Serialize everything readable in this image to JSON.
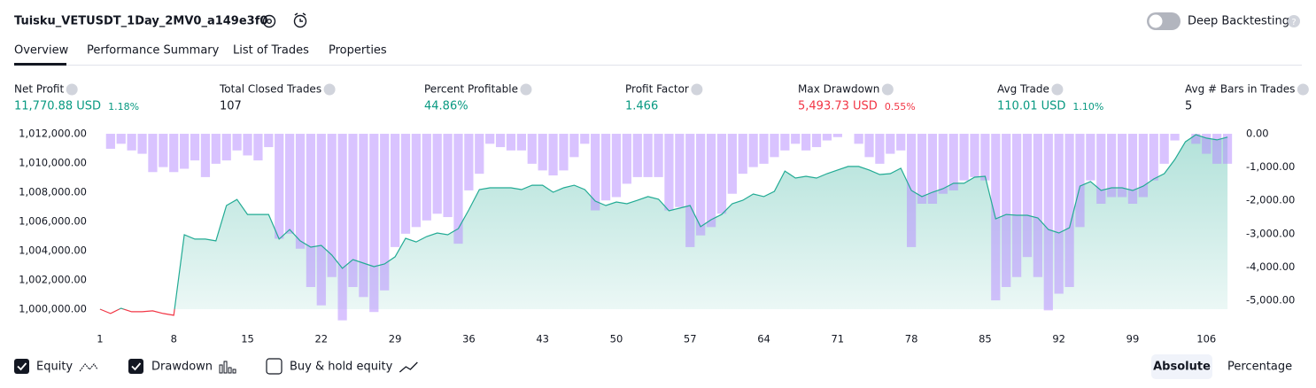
{
  "header": {
    "title": "Tuisku_VETUSDT_1Day_2MV0_a149e3f0",
    "deep_backtesting": "Deep Backtesting"
  },
  "tabs": [
    "Overview",
    "Performance Summary",
    "List of Trades",
    "Properties"
  ],
  "stats": [
    {
      "label": "Net Profit",
      "value": "11,770.88 USD",
      "percent": "1.18%"
    },
    {
      "label": "Total Closed Trades",
      "value": "107"
    },
    {
      "label": "Percent Profitable",
      "value": "44.86%"
    },
    {
      "label": "Profit Factor",
      "value": "1.466"
    },
    {
      "label": "Max Drawdown",
      "value": "5,493.73 USD",
      "percent": "0.55%"
    },
    {
      "label": "Avg Trade",
      "value": "110.01 USD",
      "percent": "1.10%"
    },
    {
      "label": "Avg # Bars in Trades",
      "value": "5"
    }
  ],
  "controls": {
    "buy_hold": "Buy & hold equity",
    "scale_buttons": [
      "Absolute",
      "Percentage"
    ]
  },
  "chart_data": {
    "type": "combo",
    "x": [
      1,
      2,
      3,
      4,
      5,
      6,
      7,
      8,
      9,
      10,
      11,
      12,
      13,
      14,
      15,
      16,
      17,
      18,
      19,
      20,
      21,
      22,
      23,
      24,
      25,
      26,
      27,
      28,
      29,
      30,
      31,
      32,
      33,
      34,
      35,
      36,
      37,
      38,
      39,
      40,
      41,
      42,
      43,
      44,
      45,
      46,
      47,
      48,
      49,
      50,
      51,
      52,
      53,
      54,
      55,
      56,
      57,
      58,
      59,
      60,
      61,
      62,
      63,
      64,
      65,
      66,
      67,
      68,
      69,
      70,
      71,
      72,
      73,
      74,
      75,
      76,
      77,
      78,
      79,
      80,
      81,
      82,
      83,
      84,
      85,
      86,
      87,
      88,
      89,
      90,
      91,
      92,
      93,
      94,
      95,
      96,
      97,
      98,
      99,
      100,
      101,
      102,
      103,
      104,
      105,
      106,
      107,
      108
    ],
    "xlim": [
      0.5,
      108.5
    ],
    "xticks": [
      1,
      8,
      15,
      22,
      29,
      36,
      43,
      50,
      57,
      64,
      71,
      78,
      85,
      92,
      99,
      106
    ],
    "ylim": [
      999210,
      1012060
    ],
    "yticks": [
      {
        "value": 1000000,
        "label": "1,000,000.00"
      },
      {
        "value": 1002000,
        "label": "1,002,000.00"
      },
      {
        "value": 1004000,
        "label": "1,004,000.00"
      },
      {
        "value": 1006000,
        "label": "1,006,000.00"
      },
      {
        "value": 1008000,
        "label": "1,008,000.00"
      },
      {
        "value": 1010000,
        "label": "1,010,000.00"
      },
      {
        "value": 1012000,
        "label": "1,012,000.00"
      }
    ],
    "y2lim": [
      -5610,
      27
    ],
    "y2ticks": [
      {
        "value": 0,
        "label": "0.00"
      },
      {
        "value": -1000,
        "label": "-1,000.00"
      },
      {
        "value": -2000,
        "label": "-2,000.00"
      },
      {
        "value": -3000,
        "label": "-3,000.00"
      },
      {
        "value": -4000,
        "label": "-4,000.00"
      },
      {
        "value": -5000,
        "label": "-5,000.00"
      }
    ],
    "series": [
      {
        "name": "Equity",
        "color": "#22ab94",
        "loss_color": "#f23645",
        "values": [
          1000000,
          999700,
          1000060,
          999820,
          999820,
          999880,
          999700,
          999580,
          1005090,
          1004790,
          1004790,
          1004670,
          1007090,
          1007500,
          1006480,
          1006480,
          1006480,
          1004790,
          1005450,
          1004670,
          1004240,
          1004360,
          1003700,
          1002790,
          1003390,
          1003150,
          1002910,
          1003090,
          1003580,
          1004850,
          1004600,
          1004970,
          1005210,
          1005090,
          1005510,
          1006790,
          1008180,
          1008300,
          1008300,
          1008300,
          1008180,
          1008480,
          1008480,
          1008000,
          1008300,
          1008480,
          1008180,
          1007390,
          1007090,
          1007330,
          1007210,
          1007450,
          1007700,
          1007520,
          1006730,
          1006910,
          1007090,
          1005640,
          1006120,
          1006480,
          1007210,
          1007450,
          1007880,
          1007700,
          1008060,
          1009450,
          1008970,
          1009090,
          1008970,
          1009270,
          1009520,
          1009760,
          1009760,
          1009520,
          1009210,
          1009270,
          1009640,
          1008120,
          1007700,
          1008000,
          1008240,
          1008610,
          1008610,
          1009030,
          1009090,
          1006180,
          1006480,
          1006420,
          1006420,
          1006240,
          1005450,
          1005210,
          1005570,
          1008420,
          1008730,
          1008120,
          1008300,
          1008300,
          1008120,
          1008420,
          1008910,
          1009270,
          1010240,
          1011450,
          1011940,
          1011700,
          1011580,
          1011771
        ]
      },
      {
        "name": "Drawdown",
        "color": "#b388ff",
        "axis": "y2",
        "values": [
          0,
          -450,
          -300,
          -500,
          -600,
          -1150,
          -1000,
          -1150,
          -1050,
          -800,
          -1300,
          -900,
          -800,
          -500,
          -650,
          -800,
          -400,
          -3150,
          -3000,
          -3450,
          -4600,
          -5150,
          -4300,
          -5600,
          -4600,
          -4900,
          -5350,
          -4700,
          -3400,
          -3000,
          -2800,
          -2600,
          -2400,
          -2500,
          -3300,
          -1700,
          -1200,
          -300,
          -400,
          -500,
          -500,
          -900,
          -1100,
          -1250,
          -1100,
          -700,
          -300,
          -2300,
          -2000,
          -1900,
          -1500,
          -1300,
          -1300,
          -1300,
          -2300,
          -2200,
          -3400,
          -3050,
          -2800,
          -2400,
          -1800,
          -1200,
          -1000,
          -900,
          -700,
          -500,
          -300,
          -500,
          -400,
          -200,
          -100,
          0,
          -300,
          -700,
          -900,
          -600,
          -500,
          -3400,
          -2100,
          -2100,
          -1800,
          -1700,
          -1400,
          -1300,
          -1400,
          -5000,
          -4600,
          -4300,
          -3700,
          -4300,
          -5300,
          -4800,
          -4600,
          -2800,
          -1400,
          -2100,
          -1900,
          -1900,
          -2100,
          -1900,
          -1400,
          -900,
          -200,
          0,
          -300,
          -600,
          -900,
          -900
        ]
      }
    ]
  }
}
